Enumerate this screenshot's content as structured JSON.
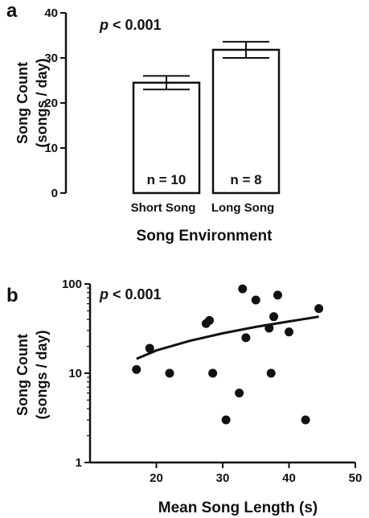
{
  "chart_data": [
    {
      "type": "bar",
      "panel_label": "a",
      "annotation": "p < 0.001",
      "annotation_p": "p",
      "annotation_rest": " < 0.001",
      "ylabel_line1": "Song Count",
      "ylabel_line2": "(songs / day)",
      "xlabel": "Song Environment",
      "ylim": [
        0,
        40
      ],
      "yticks": [
        "0",
        "10",
        "20",
        "30",
        "40"
      ],
      "categories": [
        "Short Song",
        "Long Song"
      ],
      "values": [
        24.5,
        31.8
      ],
      "errors": [
        1.5,
        1.8
      ],
      "n_labels": [
        "n = 10",
        "n = 8"
      ],
      "fill": "#ffffff",
      "stroke": "#111111"
    },
    {
      "type": "scatter",
      "panel_label": "b",
      "annotation": "p < 0.001",
      "annotation_p": "p",
      "annotation_rest": " < 0.001",
      "ylabel_line1": "Song Count",
      "ylabel_line2": "(songs / day)",
      "xlabel": "Mean  Song  Length (s)",
      "yscale": "log",
      "ylim": [
        1,
        100
      ],
      "yticks": [
        "1",
        "10",
        "100"
      ],
      "xlim": [
        10,
        50
      ],
      "xticks": [
        "20",
        "30",
        "40",
        "50"
      ],
      "points": [
        {
          "x": 17,
          "y": 11
        },
        {
          "x": 19,
          "y": 19
        },
        {
          "x": 22,
          "y": 10
        },
        {
          "x": 27.5,
          "y": 36
        },
        {
          "x": 28,
          "y": 39
        },
        {
          "x": 28.5,
          "y": 10
        },
        {
          "x": 30.5,
          "y": 3
        },
        {
          "x": 32.5,
          "y": 6
        },
        {
          "x": 33,
          "y": 88
        },
        {
          "x": 33.5,
          "y": 25
        },
        {
          "x": 35,
          "y": 66
        },
        {
          "x": 37,
          "y": 32
        },
        {
          "x": 37.3,
          "y": 10
        },
        {
          "x": 37.7,
          "y": 43
        },
        {
          "x": 38.3,
          "y": 75
        },
        {
          "x": 40,
          "y": 29
        },
        {
          "x": 42.5,
          "y": 3
        },
        {
          "x": 44.5,
          "y": 53
        }
      ],
      "fit_line": [
        {
          "x": 17,
          "y": 14.5
        },
        {
          "x": 20,
          "y": 18
        },
        {
          "x": 25,
          "y": 23
        },
        {
          "x": 30,
          "y": 28
        },
        {
          "x": 35,
          "y": 33
        },
        {
          "x": 40,
          "y": 38
        },
        {
          "x": 44.5,
          "y": 43
        }
      ],
      "point_color": "#111111"
    }
  ]
}
